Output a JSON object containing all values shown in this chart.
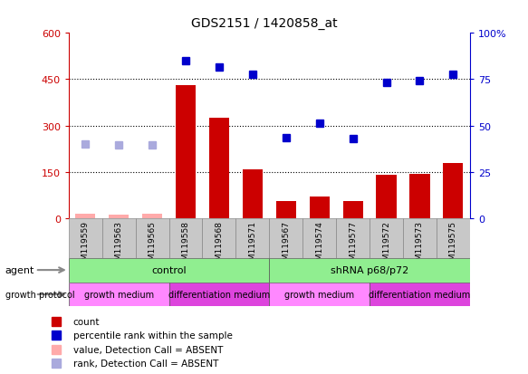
{
  "title": "GDS2151 / 1420858_at",
  "samples": [
    "GSM119559",
    "GSM119563",
    "GSM119565",
    "GSM119558",
    "GSM119568",
    "GSM119571",
    "GSM119567",
    "GSM119574",
    "GSM119577",
    "GSM119572",
    "GSM119573",
    "GSM119575"
  ],
  "count_values": [
    15,
    12,
    14,
    430,
    325,
    160,
    55,
    70,
    55,
    140,
    145,
    180
  ],
  "count_absent": [
    true,
    true,
    true,
    false,
    false,
    false,
    false,
    false,
    false,
    false,
    false,
    false
  ],
  "percentile_values": [
    240,
    237,
    238,
    510,
    490,
    465,
    262,
    308,
    258,
    440,
    445,
    465
  ],
  "percentile_absent": [
    true,
    true,
    true,
    false,
    false,
    false,
    false,
    false,
    false,
    false,
    false,
    false
  ],
  "ylim_left": [
    0,
    600
  ],
  "ylim_right": [
    0,
    100
  ],
  "yticks_left": [
    0,
    150,
    300,
    450,
    600
  ],
  "yticks_right": [
    0,
    25,
    50,
    75,
    100
  ],
  "ytick_labels_left": [
    "0",
    "150",
    "300",
    "450",
    "600"
  ],
  "ytick_labels_right": [
    "0",
    "25",
    "50",
    "75",
    "100%"
  ],
  "agent_groups": [
    {
      "label": "control",
      "start": 0,
      "end": 6,
      "color": "#90EE90"
    },
    {
      "label": "shRNA p68/p72",
      "start": 6,
      "end": 12,
      "color": "#90EE90"
    }
  ],
  "growth_groups": [
    {
      "label": "growth medium",
      "start": 0,
      "end": 3,
      "color": "#FF88FF"
    },
    {
      "label": "differentiation medium",
      "start": 3,
      "end": 6,
      "color": "#DD44DD"
    },
    {
      "label": "growth medium",
      "start": 6,
      "end": 9,
      "color": "#FF88FF"
    },
    {
      "label": "differentiation medium",
      "start": 9,
      "end": 12,
      "color": "#DD44DD"
    }
  ],
  "bar_color_present": "#CC0000",
  "bar_color_absent": "#FFAAAA",
  "dot_color_present": "#0000CC",
  "dot_color_absent": "#AAAADD",
  "xticklabel_bg": "#C8C8C8",
  "legend_items": [
    {
      "label": "count",
      "color": "#CC0000"
    },
    {
      "label": "percentile rank within the sample",
      "color": "#0000CC"
    },
    {
      "label": "value, Detection Call = ABSENT",
      "color": "#FFAAAA"
    },
    {
      "label": "rank, Detection Call = ABSENT",
      "color": "#AAAADD"
    }
  ]
}
